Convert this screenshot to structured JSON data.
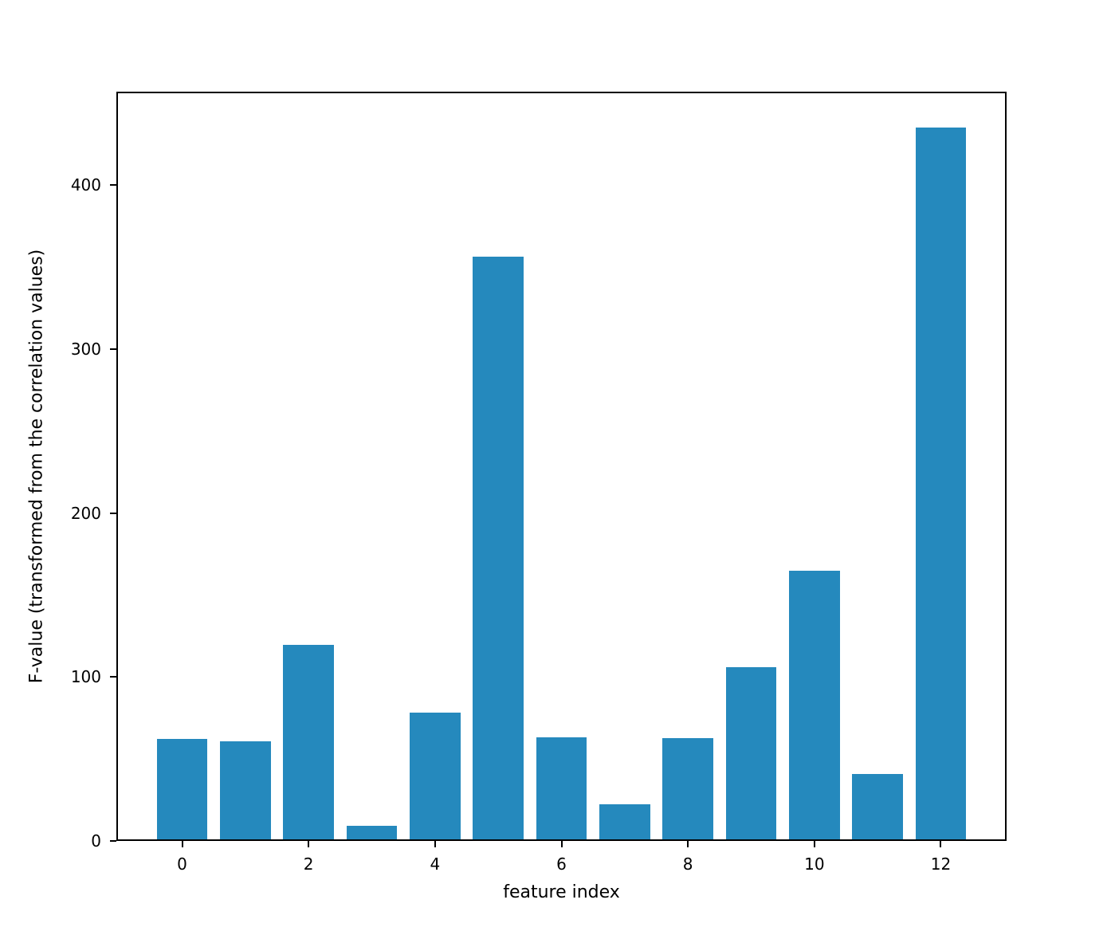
{
  "chart_data": {
    "type": "bar",
    "title": "",
    "xlabel": "feature index",
    "ylabel": "F-value (transformed from the correlation values)",
    "x": [
      0,
      1,
      2,
      3,
      4,
      5,
      6,
      7,
      8,
      9,
      10,
      11,
      12
    ],
    "values": [
      62.1,
      61.0,
      119.6,
      9.4,
      78.5,
      356.2,
      63.4,
      22.5,
      62.9,
      106.2,
      165.0,
      40.9,
      435.2
    ],
    "bar_width": 0.8,
    "xlim": [
      -1.04,
      13.04
    ],
    "ylim": [
      0,
      457
    ],
    "xticks": [
      0,
      2,
      4,
      6,
      8,
      10,
      12
    ],
    "yticks": [
      0,
      100,
      200,
      300,
      400
    ],
    "grid": false,
    "legend": null,
    "colors": {
      "bar": "#2589bd",
      "spine": "#000000",
      "text": "#000000",
      "background": "#ffffff"
    }
  }
}
